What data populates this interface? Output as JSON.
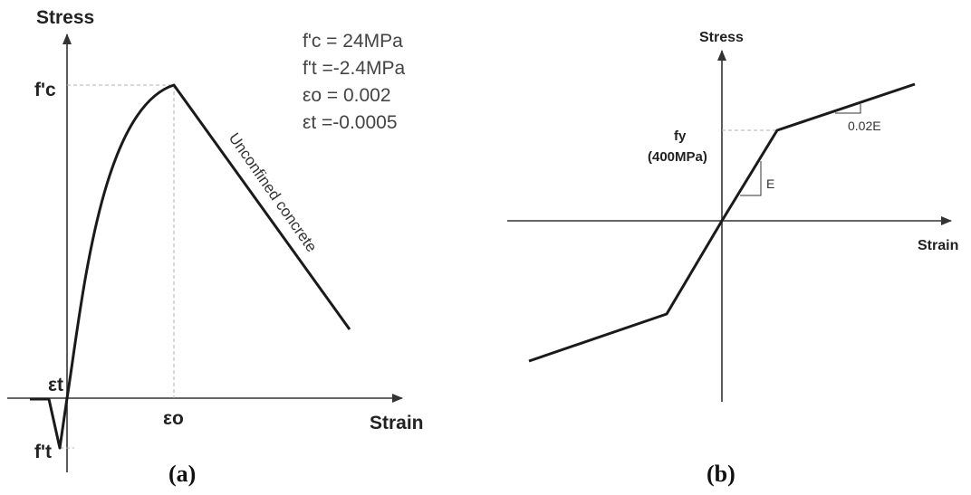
{
  "panel_a": {
    "y_axis_title": "Stress",
    "x_axis_title": "Strain",
    "fc_label": "f'c",
    "ft_label": "f't",
    "eps_t_label": "εt",
    "eps_o_label": "εo",
    "params": {
      "fc": "f'c = 24MPa",
      "ft": "f't =-2.4MPa",
      "eo": "εo = 0.002",
      "et": "εt =-0.0005"
    },
    "curve_label": "Unconfined concrete",
    "caption": "(a)"
  },
  "panel_b": {
    "y_axis_title": "Stress",
    "x_axis_title": "Strain",
    "fy_label": "fy",
    "fy_value": "(400MPa)",
    "slope_e_label": "E",
    "slope_hardening_label": "0.02E",
    "caption": "(b)"
  }
}
